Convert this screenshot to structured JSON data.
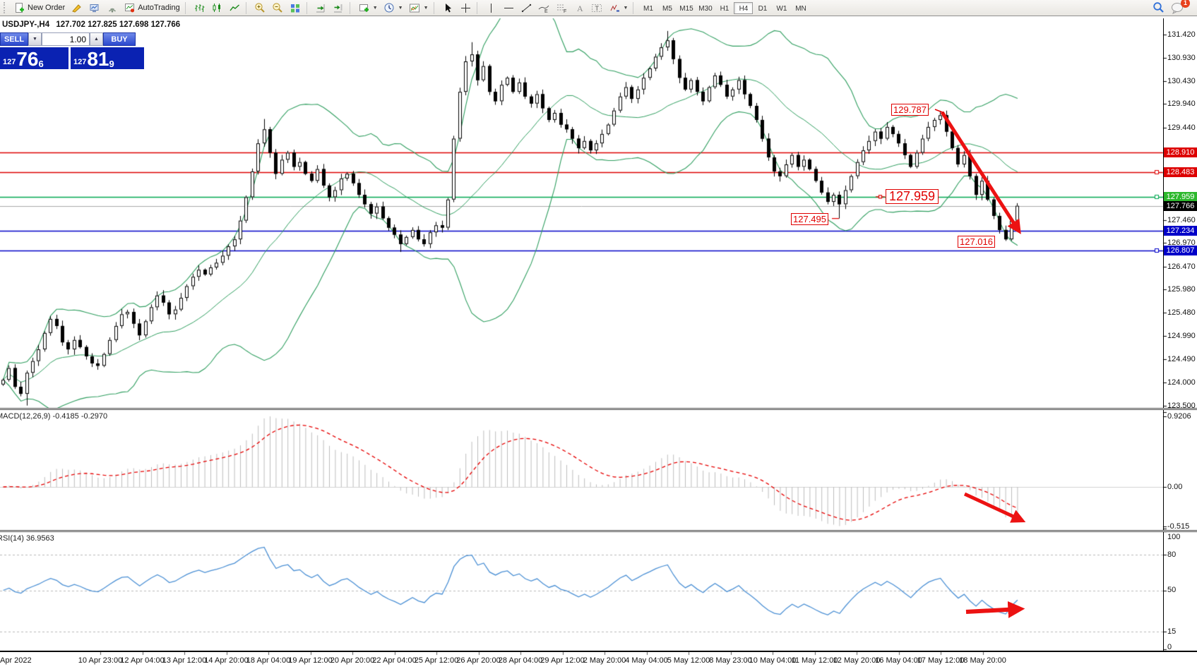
{
  "toolbar": {
    "new_order_label": "New Order",
    "autotrading_label": "AutoTrading",
    "timeframes": [
      "M1",
      "M5",
      "M15",
      "M30",
      "H1",
      "H4",
      "D1",
      "W1",
      "MN"
    ],
    "active_timeframe": "H4",
    "badge": "1"
  },
  "header": {
    "symbol": "USDJPY-,H4",
    "ohlc": "127.702 127.825 127.698 127.766"
  },
  "trade_panel": {
    "sell_label": "SELL",
    "buy_label": "BUY",
    "volume": "1.00",
    "spin_down": "▼",
    "spin_up": "▲",
    "sell_price": {
      "prefix": "127",
      "big": "76",
      "sup": "6"
    },
    "buy_price": {
      "prefix": "127",
      "big": "81",
      "sup": "9"
    }
  },
  "macd": {
    "label": "MACD(12,26,9) -0.4185 -0.2970"
  },
  "rsi": {
    "label": "RSI(14) 36.9563"
  },
  "annotations": {
    "high_label": "129.787",
    "big_label": "127.959",
    "low1_label": "127.495",
    "low2_label": "127.016"
  },
  "chart_data": {
    "type": "candlestick",
    "symbol": "USDJPY",
    "timeframe": "H4",
    "ohlc_current": {
      "open": 127.702,
      "high": 127.825,
      "low": 127.698,
      "close": 127.766
    },
    "ylim": [
      123.45,
      131.74
    ],
    "x0": 4,
    "bar_spacing": 8.4,
    "first_open": 123.95,
    "closes": [
      124.05,
      124.3,
      123.9,
      123.75,
      124.2,
      124.45,
      124.7,
      125.05,
      125.35,
      125.2,
      124.85,
      124.7,
      124.9,
      124.75,
      124.55,
      124.4,
      124.35,
      124.6,
      124.9,
      125.2,
      125.45,
      125.5,
      125.25,
      125.0,
      125.3,
      125.6,
      125.85,
      125.7,
      125.45,
      125.55,
      125.8,
      126.05,
      126.25,
      126.4,
      126.3,
      126.45,
      126.55,
      126.7,
      126.9,
      127.05,
      127.45,
      127.95,
      128.5,
      129.1,
      129.4,
      128.9,
      128.45,
      128.75,
      128.9,
      128.6,
      128.7,
      128.45,
      128.3,
      128.55,
      128.2,
      127.95,
      128.1,
      128.35,
      128.45,
      128.25,
      128.0,
      127.8,
      127.6,
      127.75,
      127.5,
      127.3,
      127.15,
      126.95,
      127.1,
      127.25,
      127.05,
      126.95,
      127.2,
      127.35,
      127.3,
      127.9,
      129.2,
      130.2,
      130.85,
      131.0,
      130.45,
      130.75,
      130.2,
      130.0,
      130.35,
      130.5,
      130.2,
      130.4,
      130.1,
      129.95,
      130.15,
      129.85,
      129.6,
      129.75,
      129.5,
      129.4,
      129.2,
      129.0,
      129.15,
      128.95,
      129.1,
      129.3,
      129.5,
      129.8,
      130.1,
      130.3,
      130.05,
      130.25,
      130.5,
      130.7,
      130.95,
      131.15,
      131.3,
      130.9,
      130.5,
      130.25,
      130.45,
      130.2,
      130.0,
      130.3,
      130.55,
      130.35,
      130.1,
      130.25,
      130.45,
      130.15,
      129.9,
      129.6,
      129.2,
      128.8,
      128.5,
      128.4,
      128.65,
      128.85,
      128.6,
      128.75,
      128.55,
      128.3,
      128.05,
      127.85,
      128.0,
      127.8,
      128.1,
      128.4,
      128.7,
      128.95,
      129.15,
      129.35,
      129.2,
      129.45,
      129.3,
      129.1,
      128.85,
      128.6,
      128.9,
      129.2,
      129.45,
      129.6,
      129.7,
      129.35,
      129.0,
      128.65,
      128.85,
      128.4,
      128.0,
      128.3,
      127.9,
      127.55,
      127.25,
      127.05,
      127.45,
      127.766
    ],
    "wick_overrides": {
      "4": {
        "low": 123.5
      },
      "44": {
        "high": 129.62
      },
      "67": {
        "low": 126.78
      },
      "79": {
        "high": 131.26
      },
      "112": {
        "high": 131.5
      },
      "141": {
        "low": 127.495
      },
      "158": {
        "high": 129.787
      },
      "169": {
        "low": 127.016
      }
    },
    "indicators": {
      "bollinger": {
        "period": 20,
        "deviation": 2,
        "color": "#2f9e5f"
      },
      "macd": {
        "fast": 12,
        "slow": 26,
        "signal": 9,
        "current": -0.4185,
        "current_signal": -0.297,
        "histogram_color": "#bdbdbd",
        "signal_color": "#e60000"
      },
      "rsi": {
        "period": 14,
        "current": 36.9563,
        "color": "#4a8fd4"
      }
    },
    "levels": [
      {
        "price": 128.91,
        "line": "#dd0000",
        "box": "#dd0000",
        "label": "128.910",
        "handle": false
      },
      {
        "price": 128.483,
        "line": "#dd0000",
        "box": "#dd0000",
        "label": "128.483",
        "handle": true
      },
      {
        "price": 127.959,
        "line": "#00a650",
        "box": "#2db82d",
        "label": "127.959",
        "handle": true
      },
      {
        "price": 127.766,
        "line": "#a8a8a8",
        "box": "#000000",
        "label": "127.766",
        "handle": false
      },
      {
        "price": 127.234,
        "line": "#0000c8",
        "box": "#0000c8",
        "label": "127.234",
        "handle": false
      },
      {
        "price": 126.807,
        "line": "#0000c8",
        "box": "#0000c8",
        "label": "126.807",
        "handle": true
      }
    ],
    "price_ticks": [
      {
        "p": 131.42,
        "t": "131.420"
      },
      {
        "p": 130.93,
        "t": "130.930"
      },
      {
        "p": 130.43,
        "t": "130.430"
      },
      {
        "p": 129.94,
        "t": "129.940"
      },
      {
        "p": 129.44,
        "t": "129.440"
      },
      {
        "p": 127.46,
        "t": "127.460"
      },
      {
        "p": 126.97,
        "t": "126.970"
      },
      {
        "p": 126.47,
        "t": "126.470"
      },
      {
        "p": 125.98,
        "t": "125.980"
      },
      {
        "p": 125.48,
        "t": "125.480"
      },
      {
        "p": 124.99,
        "t": "124.990"
      },
      {
        "p": 124.49,
        "t": "124.490"
      },
      {
        "p": 124.0,
        "t": "124.000"
      },
      {
        "p": 123.5,
        "t": "123.500"
      }
    ],
    "hidden_tick_prices": [
      128.95,
      128.46,
      127.97
    ],
    "macd_axis": [
      {
        "v": 0.9206,
        "t": "0.9206"
      },
      {
        "v": 0,
        "t": "0.00"
      },
      {
        "v": -0.515,
        "t": "-0.515"
      }
    ],
    "rsi_axis": [
      {
        "v": 100,
        "t": "100"
      },
      {
        "v": 80,
        "t": "80"
      },
      {
        "v": 50,
        "t": "50"
      },
      {
        "v": 15,
        "t": "15"
      },
      {
        "v": 0,
        "t": "0"
      }
    ],
    "rsi_dashed_levels": [
      80,
      50,
      15
    ],
    "arrows": {
      "main": [
        1334,
        159,
        1442,
        326
      ],
      "macd": [
        1366,
        700,
        1446,
        737
      ],
      "rsi": [
        1368,
        867,
        1443,
        863
      ]
    },
    "time_axis": {
      "first_label": "Apr 2022",
      "start_x": 142,
      "step": 59.5,
      "labels": [
        "10 Apr 23:00",
        "12 Apr 04:00",
        "13 Apr 12:00",
        "14 Apr 20:00",
        "18 Apr 04:00",
        "19 Apr 12:00",
        "20 Apr 20:00",
        "22 Apr 04:00",
        "25 Apr 12:00",
        "26 Apr 20:00",
        "28 Apr 04:00",
        "29 Apr 12:00",
        "2 May 20:00",
        "4 May 04:00",
        "5 May 12:00",
        "8 May 23:00",
        "10 May 04:00",
        "11 May 12:00",
        "12 May 20:00",
        "16 May 04:00",
        "17 May 12:00",
        "18 May 20:00"
      ]
    }
  }
}
